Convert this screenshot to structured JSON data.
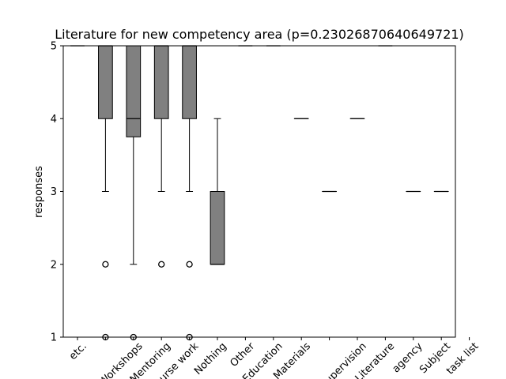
{
  "chart_data": {
    "type": "box",
    "title": "Literature for new competency area (p=0.23026870640649721)",
    "xlabel": "",
    "ylabel": "responses",
    "ylim": [
      1,
      5
    ],
    "yticks": [
      1,
      2,
      3,
      4,
      5
    ],
    "box_color": "#808080",
    "categories": [
      "etc.",
      "",
      "Workshops",
      "Mentoring",
      "Course work",
      "Nothing",
      "Other",
      "Education",
      "Materials",
      "",
      "Supervision",
      "Literature",
      "agency",
      "Subject",
      "task list"
    ],
    "boxes": [
      {
        "q1": 5,
        "median": 5,
        "q3": 5,
        "whisker_low": 5,
        "whisker_high": 5,
        "fliers": []
      },
      {
        "q1": 4,
        "median": 5,
        "q3": 5,
        "whisker_low": 3,
        "whisker_high": 5,
        "fliers": [
          2,
          1
        ]
      },
      {
        "q1": 3.75,
        "median": 4,
        "q3": 5,
        "whisker_low": 2,
        "whisker_high": 5,
        "fliers": [
          1
        ]
      },
      {
        "q1": 4,
        "median": 5,
        "q3": 5,
        "whisker_low": 3,
        "whisker_high": 5,
        "fliers": [
          2
        ]
      },
      {
        "q1": 4,
        "median": 5,
        "q3": 5,
        "whisker_low": 3,
        "whisker_high": 5,
        "fliers": [
          2,
          1
        ]
      },
      {
        "q1": 2,
        "median": 2,
        "q3": 3,
        "whisker_low": 2,
        "whisker_high": 4,
        "fliers": []
      },
      {
        "q1": 5,
        "median": 5,
        "q3": 5,
        "whisker_low": 5,
        "whisker_high": 5,
        "fliers": []
      },
      {
        "q1": 5,
        "median": 5,
        "q3": 5,
        "whisker_low": 5,
        "whisker_high": 5,
        "fliers": []
      },
      {
        "q1": 4,
        "median": 4,
        "q3": 4,
        "whisker_low": 4,
        "whisker_high": 4,
        "fliers": []
      },
      {
        "q1": 3,
        "median": 3,
        "q3": 3,
        "whisker_low": 3,
        "whisker_high": 3,
        "fliers": []
      },
      {
        "q1": 4,
        "median": 4,
        "q3": 4,
        "whisker_low": 4,
        "whisker_high": 4,
        "fliers": []
      },
      {
        "q1": 5,
        "median": 5,
        "q3": 5,
        "whisker_low": 5,
        "whisker_high": 5,
        "fliers": []
      },
      {
        "q1": 3,
        "median": 3,
        "q3": 3,
        "whisker_low": 3,
        "whisker_high": 3,
        "fliers": []
      },
      {
        "q1": 3,
        "median": 3,
        "q3": 3,
        "whisker_low": 3,
        "whisker_high": 3,
        "fliers": []
      },
      null
    ]
  }
}
